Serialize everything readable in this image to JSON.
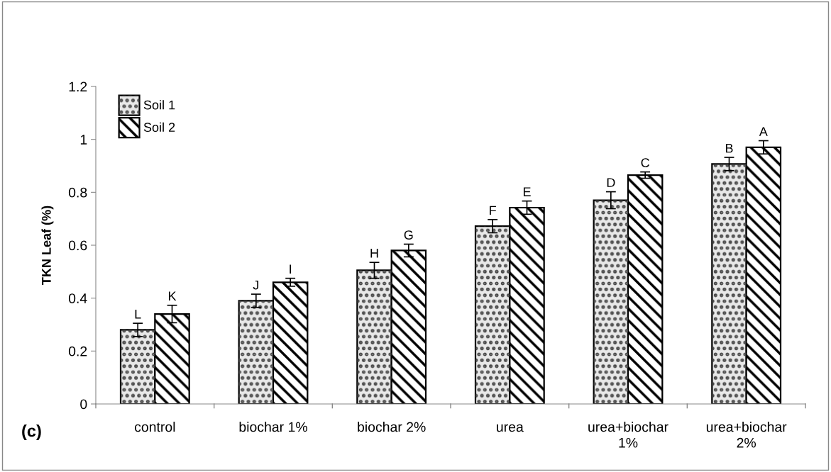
{
  "chart_data": {
    "type": "bar",
    "ylabel": "TKN Leaf (%)",
    "categories": [
      "control",
      "biochar 1%",
      "biochar 2%",
      "urea",
      "urea+biochar\n1%",
      "urea+biochar\n2%"
    ],
    "series": [
      {
        "name": "Soil 1",
        "color": "#e8e8e8",
        "values": [
          0.28,
          0.39,
          0.505,
          0.672,
          0.77,
          0.907
        ],
        "errors": [
          0.025,
          0.025,
          0.03,
          0.025,
          0.032,
          0.025
        ],
        "value_labels": [
          "L",
          "J",
          "H",
          "F",
          "D",
          "B"
        ]
      },
      {
        "name": "Soil 2",
        "color": "#ffffff",
        "values": [
          0.34,
          0.46,
          0.58,
          0.742,
          0.865,
          0.97
        ],
        "errors": [
          0.033,
          0.015,
          0.024,
          0.025,
          0.012,
          0.025
        ],
        "value_labels": [
          "K",
          "I",
          "G",
          "E",
          "C",
          "A"
        ]
      }
    ],
    "ylim": [
      0,
      1.2
    ],
    "yticks": [
      0,
      0.2,
      0.4,
      0.6,
      0.8,
      1,
      1.2
    ],
    "grid": false,
    "legend": "top left",
    "annotations": [
      "(c)"
    ]
  }
}
